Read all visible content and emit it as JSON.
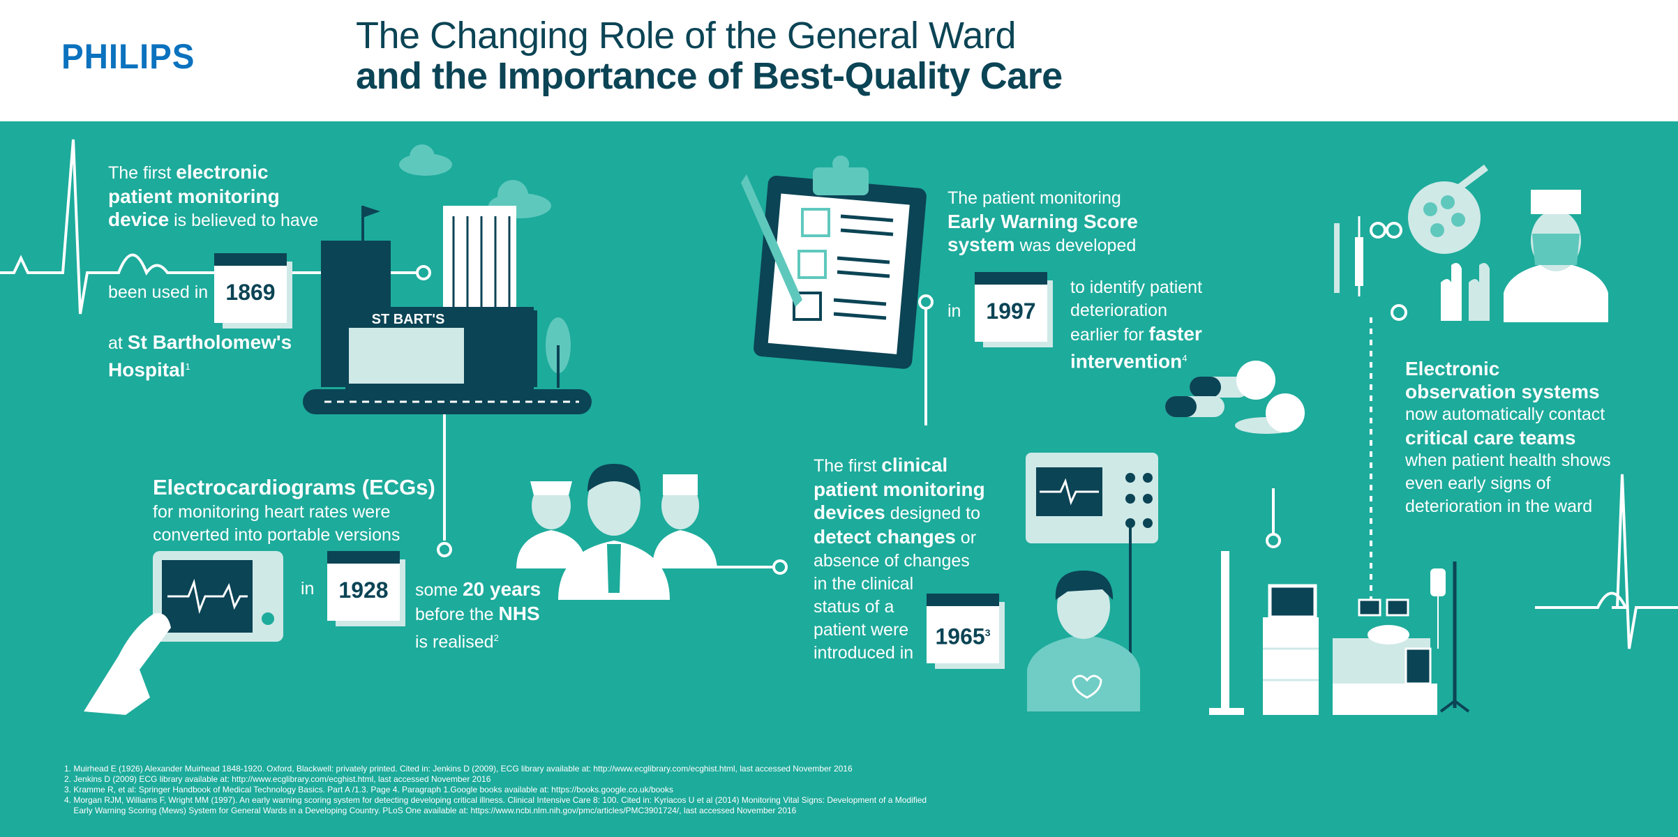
{
  "header": {
    "logo": "PHILIPS",
    "title_line1": "The Changing Role of the General Ward",
    "title_line2": "and the Importance of Best-Quality Care"
  },
  "colors": {
    "background": "#1dab9b",
    "dark": "#0b4455",
    "brand": "#0b72be",
    "light": "#cfe9e7"
  },
  "events": {
    "e1869": {
      "t1": "The first ",
      "t2": "electronic",
      "t3": "patient monitoring",
      "t4": "device",
      "t5": " is believed to have",
      "t6": "been used in",
      "year": "1869",
      "t7": "at ",
      "t8": "St Bartholomew's",
      "t9": "Hospital",
      "ref": "1",
      "sign": "ST BART'S"
    },
    "e1928": {
      "h": "Electrocardiograms (ECGs)",
      "t1": "for monitoring heart rates were",
      "t2": "converted into portable versions",
      "in": "in",
      "year": "1928",
      "t3": "some ",
      "t4": "20 years",
      "t5": "before the ",
      "t6": "NHS",
      "t7": "is realised",
      "ref": "2"
    },
    "e1997": {
      "t1": "The patient monitoring",
      "t2": "Early Warning Score",
      "t3": "system",
      "t4": " was developed",
      "in": "in",
      "year": "1997",
      "t5": "to identify patient",
      "t6": "deterioration",
      "t7": "earlier for ",
      "t8": "faster",
      "t9": "intervention",
      "ref": "4"
    },
    "e1965": {
      "t1": "The first ",
      "t2": "clinical",
      "t3": "patient monitoring",
      "t4": "devices",
      "t5": " designed to",
      "t6": "detect changes",
      "t7": " or",
      "t8": "absence of changes",
      "t9": "in the clinical",
      "t10": "status of a",
      "t11": "patient were",
      "t12": "introduced in",
      "year": "1965",
      "ref": "3"
    },
    "eobs": {
      "t1": "Electronic",
      "t2": "observation systems",
      "t3": "now automatically contact",
      "t4": "critical care teams",
      "t5": "when patient health shows",
      "t6": "even early signs of",
      "t7": "deterioration in the ward"
    }
  },
  "footnotes": [
    "1. Muirhead E (1926) Alexander Muirhead 1848-1920. Oxford, Blackwell: privately printed. Cited in: Jenkins D (2009), ECG library available at: http://www.ecglibrary.com/ecghist.html, last accessed November 2016",
    "2. Jenkins D (2009) ECG library available at: http://www.ecglibrary.com/ecghist.html, last accessed November 2016",
    "3. Kramme R, et al: Springer Handbook of Medical Technology Basics. Part A /1.3. Page 4. Paragraph 1.Google books available at: https://books.google.co.uk/books",
    "4. Morgan RJM, Williams F, Wright MM (1997). An early warning scoring system for detecting developing critical illness. Clinical Intensive Care 8: 100. Cited in: Kyriacos U et al (2014) Monitoring Vital Signs: Development of a Modified",
    "    Early Warning Scoring (Mews) System for General Wards in a Developing Country. PLoS One available at: https://www.ncbi.nlm.nih.gov/pmc/articles/PMC3901724/, last accessed November 2016"
  ]
}
